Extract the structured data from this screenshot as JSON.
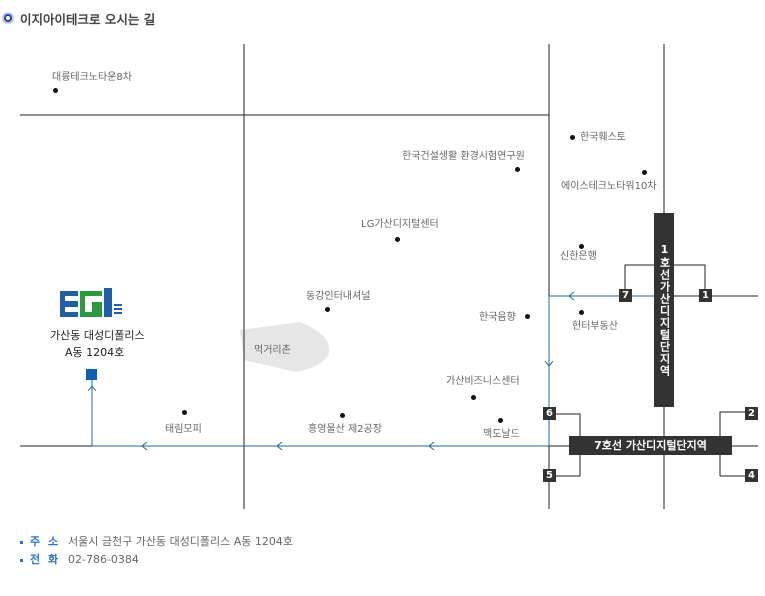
{
  "page": {
    "title": "이지아이테크로 오시는 길",
    "title_icon": "circle-bullet-icon"
  },
  "map": {
    "company": {
      "logo_text": "EGi",
      "address_line1": "가산동 대성디폴리스",
      "address_line2": "A동 1204호",
      "marker_color": "#0a61b2"
    },
    "landmarks": {
      "daeryung_8": "대륭테크노타운8차",
      "kict": "한국건설생활 환경시험연구원",
      "hankook_wellsto": "한국훼스토",
      "ace_tower_10": "에이스테크노타워10차",
      "lg_center": "LG가산디지털센터",
      "shinhan_bank": "신한은행",
      "donggang": "동강인터내셔널",
      "hankook_eumhyang": "한국음향",
      "hunter_realestate": "헌터부동산",
      "meokgeori": "먹거리촌",
      "gasan_biz_center": "가산비즈니스센터",
      "taerim_mopi": "태림모피",
      "heungyoung": "흥영물산 제2공장",
      "mcdonalds": "맥도날드"
    },
    "stations": {
      "line1": "1호선가산디지털단지역",
      "line7": "7호선 가산디지털단지역"
    },
    "exits": [
      "7",
      "1",
      "6",
      "5",
      "2",
      "4"
    ],
    "route_color": "#1a6aa0",
    "road_color": "#222222"
  },
  "info": {
    "address_label": "주 소",
    "address_value": "서울시 금천구 가산동 대성디폴리스 A동 1204호",
    "phone_label": "전 화",
    "phone_value": "02-786-0384"
  }
}
